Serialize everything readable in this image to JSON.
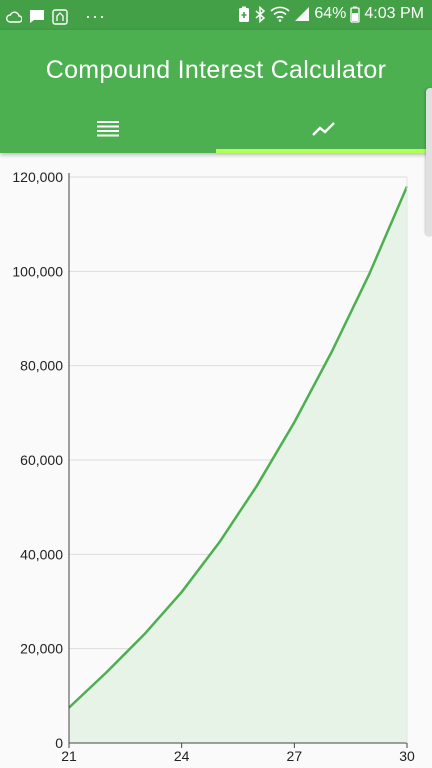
{
  "status_bar": {
    "battery_percent": "64%",
    "time": "4:03 PM",
    "more_label": "···"
  },
  "app_bar": {
    "title": "Compound Interest Calculator",
    "tabs": [
      {
        "icon": "list-icon",
        "selected": false
      },
      {
        "icon": "trending-up-icon",
        "selected": true
      }
    ]
  },
  "colors": {
    "status_bar": "#43a047",
    "app_bar": "#4caf50",
    "tab_indicator": "#b2ff59",
    "line": "#4caf50",
    "area_fill": "#e8f3e8"
  },
  "chart_data": {
    "type": "area",
    "x": [
      21,
      22,
      23,
      24,
      25,
      26,
      27,
      28,
      29,
      30
    ],
    "values": [
      7500,
      15000,
      23000,
      32000,
      42500,
      54500,
      68000,
      83000,
      99500,
      118000
    ],
    "xticks": [
      21,
      24,
      27,
      30
    ],
    "xtick_labels": [
      "21",
      "24",
      "27",
      "30"
    ],
    "yticks": [
      0,
      20000,
      40000,
      60000,
      80000,
      100000,
      120000
    ],
    "ytick_labels": [
      "0",
      "20,000",
      "40,000",
      "60,000",
      "80,000",
      "100,000",
      "120,000"
    ],
    "xlim": [
      21,
      30
    ],
    "ylim": [
      0,
      120000
    ],
    "grid": true,
    "title": "",
    "xlabel": "",
    "ylabel": ""
  }
}
